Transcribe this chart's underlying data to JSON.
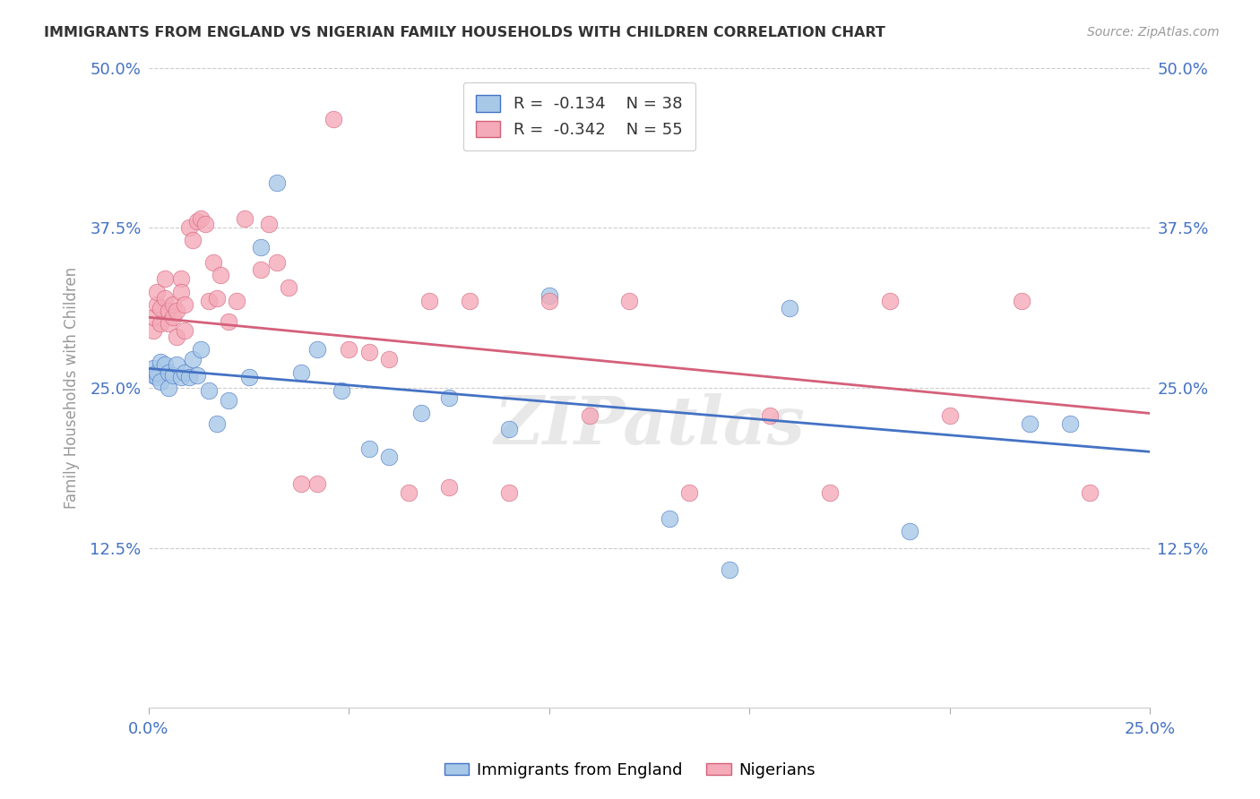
{
  "title": "IMMIGRANTS FROM ENGLAND VS NIGERIAN FAMILY HOUSEHOLDS WITH CHILDREN CORRELATION CHART",
  "source": "Source: ZipAtlas.com",
  "ylabel": "Family Households with Children",
  "xlim": [
    0.0,
    0.25
  ],
  "ylim": [
    0.0,
    0.5
  ],
  "yticks": [
    0.0,
    0.125,
    0.25,
    0.375,
    0.5
  ],
  "ytick_labels_left": [
    "",
    "12.5%",
    "25.0%",
    "37.5%",
    "50.0%"
  ],
  "ytick_labels_right": [
    "",
    "12.5%",
    "25.0%",
    "37.5%",
    "50.0%"
  ],
  "legend_labels": [
    "Immigrants from England",
    "Nigerians"
  ],
  "r_england": -0.134,
  "n_england": 38,
  "r_nigerian": -0.342,
  "n_nigerian": 55,
  "color_england": "#a8c8e8",
  "color_nigerian": "#f4aab8",
  "line_color_england": "#4472c4",
  "line_color_nigerian": "#d4607a",
  "watermark": "ZIPatlas",
  "eng_line_x0": 0.0,
  "eng_line_y0": 0.265,
  "eng_line_x1": 0.25,
  "eng_line_y1": 0.2,
  "nig_line_x0": 0.0,
  "nig_line_y0": 0.305,
  "nig_line_x1": 0.25,
  "nig_line_y1": 0.23,
  "england_x": [
    0.001,
    0.001,
    0.002,
    0.002,
    0.003,
    0.003,
    0.004,
    0.005,
    0.005,
    0.006,
    0.007,
    0.008,
    0.009,
    0.01,
    0.011,
    0.012,
    0.013,
    0.015,
    0.017,
    0.02,
    0.025,
    0.028,
    0.032,
    0.038,
    0.042,
    0.048,
    0.055,
    0.06,
    0.068,
    0.075,
    0.09,
    0.1,
    0.13,
    0.145,
    0.16,
    0.19,
    0.22,
    0.23
  ],
  "england_y": [
    0.265,
    0.26,
    0.258,
    0.262,
    0.255,
    0.27,
    0.268,
    0.262,
    0.25,
    0.26,
    0.268,
    0.258,
    0.262,
    0.258,
    0.272,
    0.26,
    0.28,
    0.248,
    0.222,
    0.24,
    0.258,
    0.36,
    0.41,
    0.262,
    0.28,
    0.248,
    0.202,
    0.196,
    0.23,
    0.242,
    0.218,
    0.322,
    0.148,
    0.108,
    0.312,
    0.138,
    0.222,
    0.222
  ],
  "nigerian_x": [
    0.001,
    0.001,
    0.002,
    0.002,
    0.003,
    0.003,
    0.004,
    0.004,
    0.005,
    0.005,
    0.006,
    0.006,
    0.007,
    0.007,
    0.008,
    0.008,
    0.009,
    0.009,
    0.01,
    0.011,
    0.012,
    0.013,
    0.014,
    0.015,
    0.016,
    0.017,
    0.018,
    0.02,
    0.022,
    0.024,
    0.028,
    0.03,
    0.032,
    0.035,
    0.038,
    0.042,
    0.046,
    0.05,
    0.055,
    0.06,
    0.065,
    0.07,
    0.075,
    0.08,
    0.09,
    0.1,
    0.11,
    0.12,
    0.135,
    0.155,
    0.17,
    0.185,
    0.2,
    0.218,
    0.235
  ],
  "nigerian_y": [
    0.295,
    0.305,
    0.315,
    0.325,
    0.3,
    0.312,
    0.335,
    0.32,
    0.31,
    0.3,
    0.305,
    0.315,
    0.29,
    0.31,
    0.335,
    0.325,
    0.295,
    0.315,
    0.375,
    0.365,
    0.38,
    0.382,
    0.378,
    0.318,
    0.348,
    0.32,
    0.338,
    0.302,
    0.318,
    0.382,
    0.342,
    0.378,
    0.348,
    0.328,
    0.175,
    0.175,
    0.46,
    0.28,
    0.278,
    0.272,
    0.168,
    0.318,
    0.172,
    0.318,
    0.168,
    0.318,
    0.228,
    0.318,
    0.168,
    0.228,
    0.168,
    0.318,
    0.228,
    0.318,
    0.168
  ]
}
